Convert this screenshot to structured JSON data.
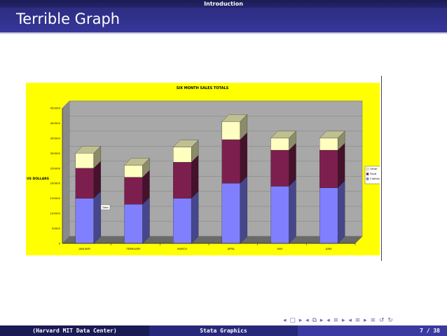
{
  "header": {
    "section": "Introduction",
    "title": "Terrible Graph"
  },
  "footer": {
    "left": "(Harvard MIT Data Center)",
    "center": "Stata Graphics",
    "right": "7 / 38"
  },
  "nav_icons": [
    "nav-prev-frame-icon",
    "nav-next-frame-icon",
    "nav-prev-subsection-icon",
    "nav-next-subsection-icon",
    "nav-prev-section-icon",
    "nav-next-section-icon",
    "nav-align-icon",
    "nav-loop-icon"
  ],
  "chart_data": {
    "type": "bar",
    "stacked": true,
    "title": "SIX MONTH SALES TOTALS",
    "ylabel": "US DOLLARS",
    "xlabel": "",
    "categories": [
      "JANUARY",
      "FEBRUARY",
      "MARCH",
      "APRIL",
      "MAY",
      "JUNE"
    ],
    "ylim": [
      0,
      450000
    ],
    "yticks": [
      "0",
      "50000",
      "100000",
      "150000",
      "200000",
      "250000",
      "300000",
      "350000",
      "400000",
      "450000"
    ],
    "series": [
      {
        "name": "Clothing",
        "values": [
          150000,
          130000,
          150000,
          200000,
          190000,
          185000
        ],
        "color": "#8080ff"
      },
      {
        "name": "Food",
        "values": [
          100000,
          90000,
          120000,
          145000,
          120000,
          125000
        ],
        "color": "#7d1f4e"
      },
      {
        "name": "Other",
        "values": [
          50000,
          40000,
          50000,
          60000,
          40000,
          40000
        ],
        "color": "#ffffc0"
      }
    ],
    "annotation": "Data",
    "background": "#ffff00",
    "plot_background": "#a8a8a8",
    "legend_position": "right",
    "grid": true
  }
}
